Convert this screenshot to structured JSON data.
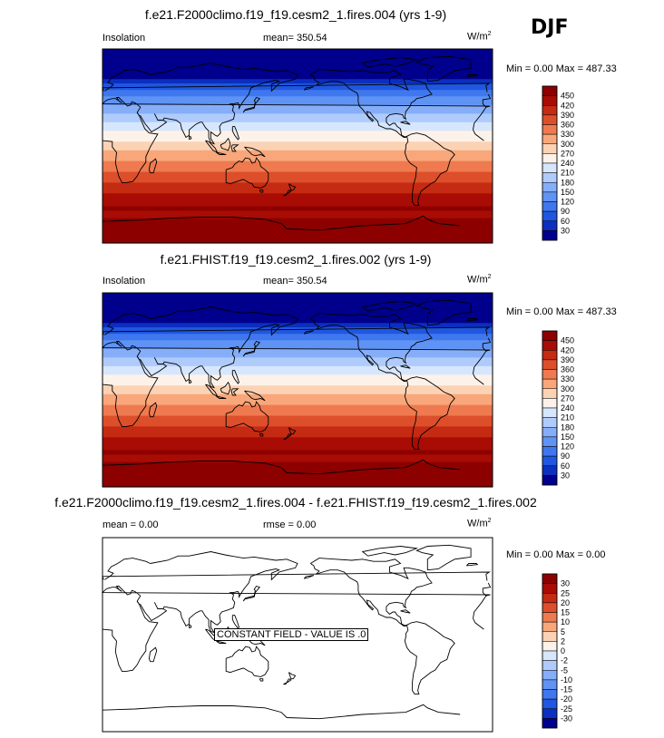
{
  "season": "DJF",
  "units_base": "W/m",
  "units_exp": "2",
  "panels": [
    {
      "title": "f.e21.F2000climo.f19_f19.cesm2_1.fires.004 (yrs 1-9)",
      "variable": "Insolation",
      "mean_text": "mean= 350.54",
      "minmax_text": "Min =  0.00 Max = 487.33"
    },
    {
      "title": "f.e21.FHIST.f19_f19.cesm2_1.fires.002 (yrs 1-9)",
      "variable": "Insolation",
      "mean_text": "mean= 350.54",
      "minmax_text": "Min =  0.00 Max = 487.33"
    },
    {
      "title": "f.e21.F2000climo.f19_f19.cesm2_1.fires.004 - f.e21.FHIST.f19_f19.cesm2_1.fires.002",
      "mean_text": "mean =   0.00",
      "rmse_text": "rmse =   0.00",
      "minmax_text": "Min =  0.00 Max =  0.00",
      "annotation": "CONSTANT FIELD - VALUE IS .0"
    }
  ],
  "chart_data": [
    {
      "type": "heatmap",
      "title": "f.e21.F2000climo.f19_f19.cesm2_1.fires.004 (yrs 1-9)",
      "field": "Insolation (DJF)",
      "units": "W/m2",
      "mean": 350.54,
      "min": 0.0,
      "max": 487.33,
      "lat_range": [
        -90,
        90
      ],
      "lon_range": [
        0,
        360
      ],
      "colorbar_levels": [
        30,
        60,
        90,
        120,
        150,
        180,
        210,
        240,
        270,
        300,
        330,
        360,
        390,
        420,
        450
      ],
      "colorbar_colors": [
        "#00008c",
        "#0b2fbf",
        "#1f57e0",
        "#3f77ee",
        "#5f93f4",
        "#86aef8",
        "#aecbfb",
        "#d6e6fd",
        "#fdf2e9",
        "#fcd2b4",
        "#f8a77b",
        "#ef7a4f",
        "#dd4f2b",
        "#c52a12",
        "#a80c04",
        "#8c0000"
      ]
    },
    {
      "type": "heatmap",
      "title": "f.e21.FHIST.f19_f19.cesm2_1.fires.002 (yrs 1-9)",
      "field": "Insolation (DJF)",
      "units": "W/m2",
      "mean": 350.54,
      "min": 0.0,
      "max": 487.33,
      "lat_range": [
        -90,
        90
      ],
      "lon_range": [
        0,
        360
      ],
      "colorbar_levels": [
        30,
        60,
        90,
        120,
        150,
        180,
        210,
        240,
        270,
        300,
        330,
        360,
        390,
        420,
        450
      ],
      "colorbar_colors": [
        "#00008c",
        "#0b2fbf",
        "#1f57e0",
        "#3f77ee",
        "#5f93f4",
        "#86aef8",
        "#aecbfb",
        "#d6e6fd",
        "#fdf2e9",
        "#fcd2b4",
        "#f8a77b",
        "#ef7a4f",
        "#dd4f2b",
        "#c52a12",
        "#a80c04",
        "#8c0000"
      ]
    },
    {
      "type": "heatmap",
      "title": "f.e21.F2000climo.f19_f19.cesm2_1.fires.004 - f.e21.FHIST.f19_f19.cesm2_1.fires.002",
      "field": "Insolation difference (DJF)",
      "units": "W/m2",
      "mean": 0.0,
      "rmse": 0.0,
      "min": 0.0,
      "max": 0.0,
      "lat_range": [
        -90,
        90
      ],
      "lon_range": [
        0,
        360
      ],
      "colorbar_levels": [
        -30,
        -25,
        -20,
        -15,
        -10,
        -5,
        -2,
        0,
        2,
        5,
        10,
        15,
        20,
        25,
        30
      ],
      "colorbar_colors": [
        "#00008c",
        "#0b2fbf",
        "#1f57e0",
        "#3f77ee",
        "#5f93f4",
        "#86aef8",
        "#aecbfb",
        "#d6e6fd",
        "#fdf2e9",
        "#fcd2b4",
        "#f8a77b",
        "#ef7a4f",
        "#dd4f2b",
        "#c52a12",
        "#a80c04",
        "#8c0000"
      ]
    }
  ]
}
